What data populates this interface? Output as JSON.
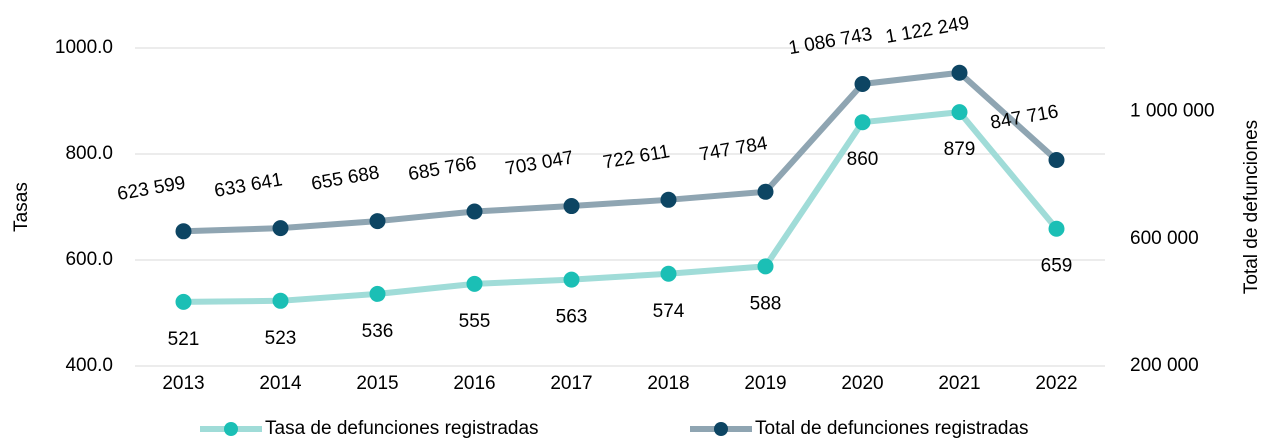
{
  "chart_data": {
    "type": "line",
    "categories": [
      "2013",
      "2014",
      "2015",
      "2016",
      "2017",
      "2018",
      "2019",
      "2020",
      "2021",
      "2022"
    ],
    "y_label": "Tasas",
    "y2_label": "Total de defunciones",
    "series": [
      {
        "name": "Tasa de defunciones registradas",
        "color": "#a0dcd8",
        "marker_color": "#1bbfb5",
        "axis": "y",
        "values": [
          521,
          523,
          536,
          555,
          563,
          574,
          588,
          860,
          879,
          659
        ]
      },
      {
        "name": "Total de defunciones registradas",
        "color": "#8fa5b2",
        "marker_color": "#0d4563",
        "axis": "y2",
        "values": [
          623599,
          633641,
          655688,
          685766,
          703047,
          722611,
          747784,
          1086743,
          1122249,
          847716
        ],
        "value_labels": [
          "623 599",
          "633 641",
          "655 688",
          "685 766",
          "703 047",
          "722 611",
          "747 784",
          "1 086 743",
          "1 122 249",
          "847 716"
        ]
      }
    ],
    "ylim": [
      400,
      1000
    ],
    "yticks": [
      {
        "value": 400,
        "label": "400.0"
      },
      {
        "value": 600,
        "label": "600.0"
      },
      {
        "value": 800,
        "label": "800.0"
      },
      {
        "value": 1000,
        "label": "1000.0"
      }
    ],
    "y2lim": [
      200000,
      1200000
    ],
    "y2ticks": [
      {
        "value": 200000,
        "label": "200 000"
      },
      {
        "value": 600000,
        "label": "600 000"
      },
      {
        "value": 1000000,
        "label": "1 000 000"
      }
    ],
    "grid": true,
    "legend": "bottom"
  }
}
